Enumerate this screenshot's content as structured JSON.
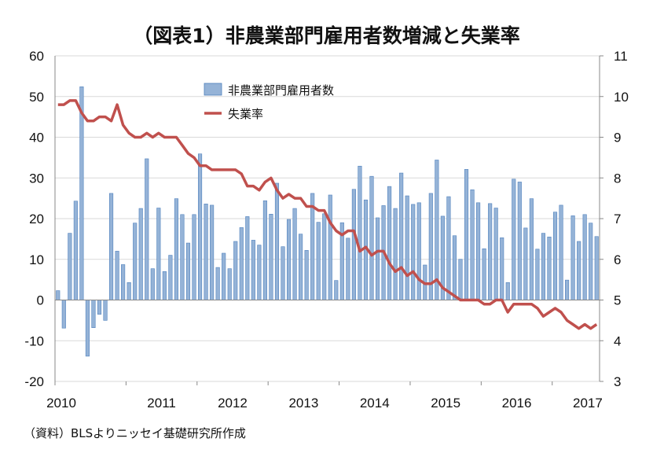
{
  "chart_data": {
    "type": "bar+line",
    "title": "（図表1）非農業部門雇用者数増減と失業率",
    "source": "（資料）BLSよりニッセイ基礎研究所作成",
    "x_labels": [
      "2010",
      "2011",
      "2012",
      "2013",
      "2014",
      "2015",
      "2016",
      "2017"
    ],
    "y_left": {
      "min": -20,
      "max": 60,
      "ticks": [
        "60",
        "50",
        "40",
        "30",
        "20",
        "10",
        "0",
        "-10",
        "-20"
      ]
    },
    "y_right": {
      "min": 3,
      "max": 11,
      "ticks": [
        "11",
        "10",
        "9",
        "8",
        "7",
        "6",
        "5",
        "4",
        "3"
      ]
    },
    "legend": {
      "bar": "非農業部門雇用者数",
      "line": "失業率",
      "position": "top-center"
    },
    "colors": {
      "bar_fill": "#95b3d7",
      "bar_stroke": "#4f81bd",
      "line": "#c0504d",
      "axis": "#888888"
    },
    "series": [
      {
        "name": "非農業部門雇用者数",
        "axis": "left",
        "type": "bar",
        "values": [
          2.3,
          -6.9,
          16.4,
          24.3,
          52.4,
          -13.8,
          -6.8,
          -3.5,
          -5.0,
          26.2,
          12.0,
          8.7,
          4.3,
          18.9,
          22.5,
          34.7,
          7.7,
          22.6,
          7.0,
          11.0,
          24.9,
          21.0,
          14.0,
          21.0,
          35.9,
          23.6,
          23.3,
          8.0,
          11.5,
          7.7,
          14.4,
          17.8,
          20.5,
          14.7,
          13.5,
          24.4,
          21.1,
          28.7,
          13.1,
          19.8,
          22.5,
          16.2,
          12.2,
          26.2,
          19.1,
          21.2,
          25.8,
          4.8,
          19.0,
          15.2,
          27.2,
          32.9,
          24.6,
          30.4,
          20.2,
          23.2,
          27.9,
          22.5,
          31.2,
          25.6,
          23.5,
          23.9,
          8.6,
          26.2,
          34.4,
          20.6,
          25.4,
          15.8,
          10.0,
          32.1,
          27.1,
          23.9,
          12.6,
          23.7,
          22.6,
          15.3,
          4.3,
          29.7,
          29.0,
          17.7,
          24.9,
          12.5,
          16.4,
          15.5,
          21.6,
          23.3,
          4.9,
          20.7,
          14.4,
          21.0,
          18.9,
          15.6
        ]
      },
      {
        "name": "失業率",
        "axis": "right",
        "type": "line",
        "values": [
          9.8,
          9.8,
          9.9,
          9.9,
          9.6,
          9.4,
          9.4,
          9.5,
          9.5,
          9.4,
          9.8,
          9.3,
          9.1,
          9.0,
          9.0,
          9.1,
          9.0,
          9.1,
          9.0,
          9.0,
          9.0,
          8.8,
          8.6,
          8.5,
          8.3,
          8.3,
          8.2,
          8.2,
          8.2,
          8.2,
          8.2,
          8.1,
          7.8,
          7.8,
          7.7,
          7.9,
          8.0,
          7.7,
          7.5,
          7.6,
          7.5,
          7.5,
          7.3,
          7.3,
          7.2,
          7.2,
          6.9,
          6.7,
          6.6,
          6.7,
          6.7,
          6.2,
          6.3,
          6.1,
          6.2,
          6.2,
          5.9,
          5.7,
          5.8,
          5.6,
          5.7,
          5.5,
          5.4,
          5.4,
          5.5,
          5.3,
          5.2,
          5.1,
          5.0,
          5.0,
          5.0,
          5.0,
          4.9,
          4.9,
          5.0,
          5.0,
          4.7,
          4.9,
          4.9,
          4.9,
          4.9,
          4.8,
          4.6,
          4.7,
          4.8,
          4.7,
          4.5,
          4.4,
          4.3,
          4.4,
          4.3,
          4.4
        ]
      }
    ]
  }
}
